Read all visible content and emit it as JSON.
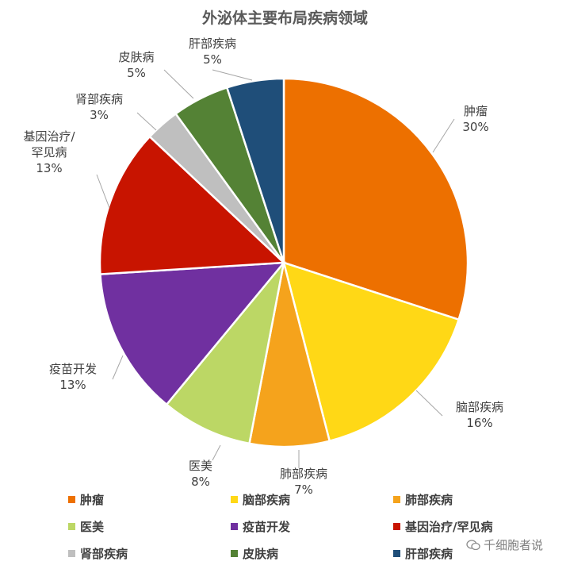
{
  "chart_data": {
    "type": "pie",
    "title": "外泌体主要布局疾病领域",
    "slices": [
      {
        "label": "肿瘤",
        "value": 30,
        "pct_label": "30%",
        "color": "#ED7000"
      },
      {
        "label": "脑部疾病",
        "value": 16,
        "pct_label": "16%",
        "color": "#FFD816"
      },
      {
        "label": "肺部疾病",
        "value": 7,
        "pct_label": "7%",
        "color": "#F5A31C"
      },
      {
        "label": "医美",
        "value": 8,
        "pct_label": "8%",
        "color": "#BCD765"
      },
      {
        "label": "疫苗开发",
        "value": 13,
        "pct_label": "13%",
        "color": "#7030A0"
      },
      {
        "label": "基因治疗/罕见病",
        "value": 13,
        "pct_label": "13%",
        "color": "#C81400"
      },
      {
        "label": "肾部疾病",
        "value": 3,
        "pct_label": "3%",
        "color": "#BFBFBF"
      },
      {
        "label": "皮肤病",
        "value": 5,
        "pct_label": "5%",
        "color": "#548235"
      },
      {
        "label": "肝部疾病",
        "value": 5,
        "pct_label": "5%",
        "color": "#1F4E79"
      }
    ],
    "legend_position": "bottom"
  },
  "watermark": "千细胞者说"
}
